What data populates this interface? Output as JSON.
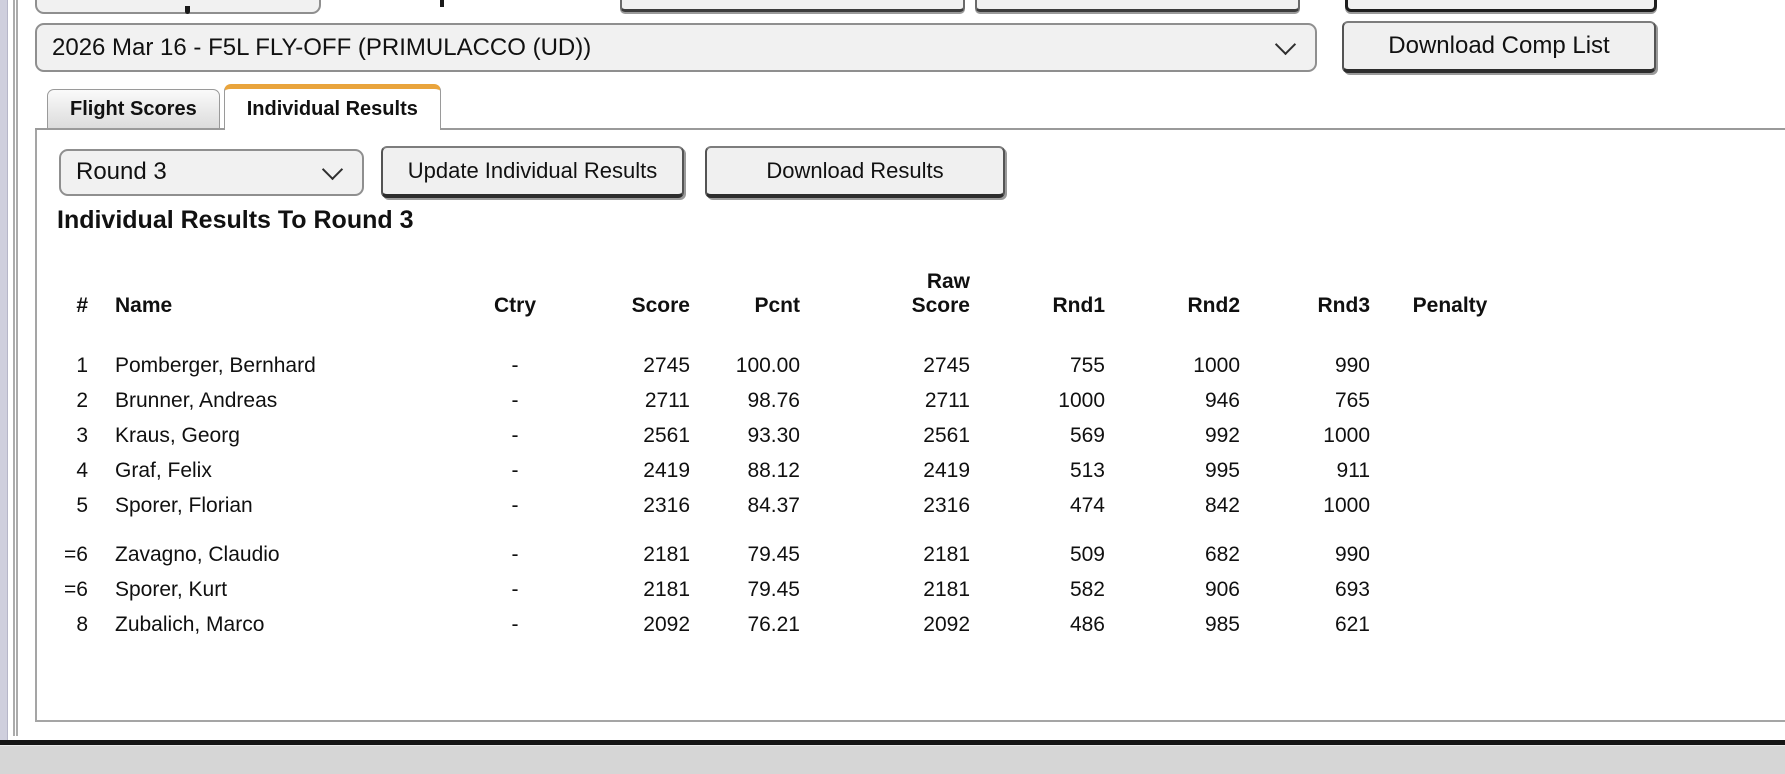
{
  "top_bar": {
    "comp_select_value": "2026 Mar 16 - F5L FLY-OFF (PRIMULACCO (UD))",
    "download_comp_list_label": "Download Comp List"
  },
  "tabs": [
    {
      "label": "Flight Scores",
      "active": false
    },
    {
      "label": "Individual Results",
      "active": true
    }
  ],
  "controls": {
    "round_select_value": "Round 3",
    "update_button_label": "Update Individual Results",
    "download_button_label": "Download Results"
  },
  "results": {
    "heading": "Individual Results To Round 3",
    "columns": [
      "#",
      "Name",
      "Ctry",
      "Score",
      "Pcnt",
      "Raw\nScore",
      "Rnd1",
      "Rnd2",
      "Rnd3",
      "Penalty"
    ],
    "rows": [
      {
        "rank": "1",
        "name": "Pomberger, Bernhard",
        "ctry": "-",
        "score": "2745",
        "pcnt": "100.00",
        "raw": "2745",
        "rnd1": "755",
        "rnd2": "1000",
        "rnd3": "990",
        "penalty": "",
        "gap_before": false
      },
      {
        "rank": "2",
        "name": "Brunner, Andreas",
        "ctry": "-",
        "score": "2711",
        "pcnt": "98.76",
        "raw": "2711",
        "rnd1": "1000",
        "rnd2": "946",
        "rnd3": "765",
        "penalty": "",
        "gap_before": false
      },
      {
        "rank": "3",
        "name": "Kraus, Georg",
        "ctry": "-",
        "score": "2561",
        "pcnt": "93.30",
        "raw": "2561",
        "rnd1": "569",
        "rnd2": "992",
        "rnd3": "1000",
        "penalty": "",
        "gap_before": false
      },
      {
        "rank": "4",
        "name": "Graf, Felix",
        "ctry": "-",
        "score": "2419",
        "pcnt": "88.12",
        "raw": "2419",
        "rnd1": "513",
        "rnd2": "995",
        "rnd3": "911",
        "penalty": "",
        "gap_before": false
      },
      {
        "rank": "5",
        "name": "Sporer, Florian",
        "ctry": "-",
        "score": "2316",
        "pcnt": "84.37",
        "raw": "2316",
        "rnd1": "474",
        "rnd2": "842",
        "rnd3": "1000",
        "penalty": "",
        "gap_before": false
      },
      {
        "rank": "=6",
        "name": "Zavagno, Claudio",
        "ctry": "-",
        "score": "2181",
        "pcnt": "79.45",
        "raw": "2181",
        "rnd1": "509",
        "rnd2": "682",
        "rnd3": "990",
        "penalty": "",
        "gap_before": true
      },
      {
        "rank": "=6",
        "name": "Sporer, Kurt",
        "ctry": "-",
        "score": "2181",
        "pcnt": "79.45",
        "raw": "2181",
        "rnd1": "582",
        "rnd2": "906",
        "rnd3": "693",
        "penalty": "",
        "gap_before": false
      },
      {
        "rank": "8",
        "name": "Zubalich, Marco",
        "ctry": "-",
        "score": "2092",
        "pcnt": "76.21",
        "raw": "2092",
        "rnd1": "486",
        "rnd2": "985",
        "rnd3": "621",
        "penalty": "",
        "gap_before": false
      }
    ]
  },
  "colors": {
    "active_tab_accent": "#e9a43c",
    "control_background": "#f1f1f1",
    "panel_border": "#a5a5a5",
    "footer_background": "#d6d6d6"
  }
}
